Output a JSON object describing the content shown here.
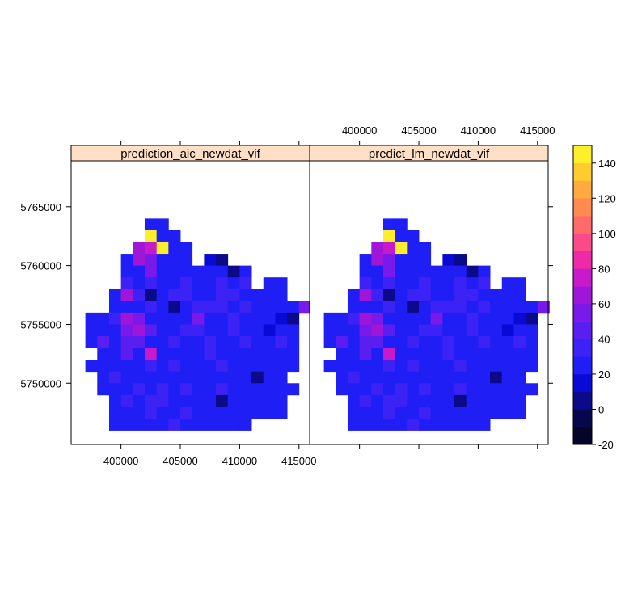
{
  "chart_data": {
    "type": "heatmap",
    "panels": [
      {
        "strip_label": "prediction_aic_newdat_vif"
      },
      {
        "strip_label": "predict_lm_newdat_vif"
      }
    ],
    "xlim": [
      395800,
      415900
    ],
    "ylim": [
      5744800,
      5768900
    ],
    "x_ticks": [
      400000,
      405000,
      410000,
      415000
    ],
    "x_tick_labels": [
      "400000",
      "405000",
      "410000",
      "415000"
    ],
    "y_ticks": [
      5750000,
      5755000,
      5760000,
      5765000
    ],
    "y_tick_labels": [
      "5750000",
      "5755000",
      "5760000",
      "5765000"
    ],
    "colorkey": {
      "range": [
        -20,
        150
      ],
      "breaks": [
        -20,
        -10,
        0,
        10,
        20,
        30,
        40,
        50,
        60,
        70,
        80,
        90,
        100,
        110,
        120,
        130,
        140,
        150
      ],
      "colors": [
        "#050529",
        "#07074d",
        "#0b0b8a",
        "#0a0ad6",
        "#1f1ff5",
        "#3d22f5",
        "#5a1ff0",
        "#7a1aea",
        "#a016d8",
        "#c81ac8",
        "#ee2aa8",
        "#fa4a8a",
        "#ff6a6a",
        "#ff8a52",
        "#ffaa40",
        "#ffcc30",
        "#ffee2a"
      ],
      "ticks": [
        -20,
        0,
        20,
        40,
        60,
        80,
        100,
        120,
        140
      ],
      "tick_labels": [
        "-20",
        "0",
        "20",
        "40",
        "60",
        "80",
        "100",
        "120",
        "140"
      ]
    },
    "grid": {
      "x0": 396000,
      "y0": 5745000,
      "cell": 1000,
      "comment_free_rows_note": "",
      "rows": [
        [
          "",
          "",
          "",
          "",
          "",
          "",
          "",
          "",
          "",
          "",
          "",
          "",
          "",
          "",
          "",
          "",
          "",
          "",
          "",
          ""
        ],
        [
          "",
          "",
          "",
          "",
          "",
          "",
          "c",
          "A",
          "",
          "",
          "",
          "",
          "",
          "",
          "",
          "",
          "",
          "",
          "",
          ""
        ],
        [
          "",
          "",
          "",
          "",
          "",
          "",
          "B",
          "A",
          "c",
          "",
          "",
          "",
          "",
          "",
          "",
          "",
          "",
          "",
          "",
          ""
        ],
        [
          "",
          "",
          "",
          "",
          "",
          "g",
          "H",
          "B",
          "c",
          "c",
          "",
          "",
          "",
          "",
          "",
          "",
          "",
          "",
          "",
          ""
        ],
        [
          "",
          "",
          "",
          "",
          "c",
          "g",
          "F",
          "c",
          "c",
          "c",
          "",
          "b",
          "a",
          "",
          "",
          "",
          "",
          "",
          "",
          ""
        ],
        [
          "",
          "",
          "",
          "",
          "c",
          "c",
          "f",
          "c",
          "c",
          "c",
          "c",
          "c",
          "c",
          "a",
          "c",
          "",
          "",
          "",
          "",
          ""
        ],
        [
          "",
          "",
          "",
          "",
          "d",
          "c",
          "d",
          "c",
          "c",
          "d",
          "c",
          "c",
          "d",
          "c",
          "d",
          "",
          "c",
          "c",
          "",
          ""
        ],
        [
          "",
          "",
          "",
          "c",
          "g",
          "d",
          "a",
          "c",
          "d",
          "d",
          "c",
          "c",
          "d",
          "d",
          "c",
          "c",
          "c",
          "c",
          "",
          ""
        ],
        [
          "",
          "",
          "",
          "c",
          "c",
          "c",
          "d",
          "c",
          "a",
          "c",
          "d",
          "d",
          "d",
          "c",
          "d",
          "c",
          "c",
          "c",
          "c",
          "f"
        ],
        [
          "",
          "c",
          "c",
          "d",
          "g",
          "f",
          "c",
          "c",
          "c",
          "c",
          "f",
          "c",
          "c",
          "d",
          "c",
          "c",
          "c",
          "b",
          "a",
          ""
        ],
        [
          "",
          "c",
          "c",
          "c",
          "f",
          "g",
          "e",
          "c",
          "c",
          "d",
          "d",
          "c",
          "c",
          "d",
          "c",
          "c",
          "b",
          "c",
          "c",
          ""
        ],
        [
          "",
          "c",
          "e",
          "c",
          "e",
          "e",
          "c",
          "c",
          "d",
          "c",
          "c",
          "d",
          "c",
          "c",
          "d",
          "c",
          "c",
          "d",
          "c",
          ""
        ],
        [
          "",
          "",
          "c",
          "c",
          "e",
          "c",
          "H",
          "c",
          "c",
          "c",
          "c",
          "d",
          "c",
          "c",
          "c",
          "c",
          "c",
          "c",
          "c",
          ""
        ],
        [
          "",
          "c",
          "c",
          "c",
          "c",
          "c",
          "d",
          "c",
          "d",
          "c",
          "c",
          "c",
          "d",
          "c",
          "c",
          "c",
          "c",
          "c",
          "c",
          ""
        ],
        [
          "",
          "",
          "c",
          "d",
          "c",
          "c",
          "c",
          "c",
          "c",
          "c",
          "c",
          "c",
          "c",
          "c",
          "c",
          "a",
          "c",
          "c",
          "",
          ""
        ],
        [
          "",
          "",
          "c",
          "c",
          "c",
          "d",
          "c",
          "d",
          "c",
          "d",
          "c",
          "c",
          "d",
          "c",
          "c",
          "c",
          "c",
          "c",
          "c",
          ""
        ],
        [
          "",
          "",
          "",
          "c",
          "d",
          "c",
          "d",
          "d",
          "c",
          "c",
          "c",
          "c",
          "a",
          "c",
          "c",
          "c",
          "c",
          "c",
          "",
          ""
        ],
        [
          "",
          "",
          "",
          "c",
          "c",
          "c",
          "d",
          "c",
          "c",
          "d",
          "c",
          "c",
          "c",
          "c",
          "c",
          "c",
          "c",
          "c",
          "",
          ""
        ],
        [
          "",
          "",
          "",
          "c",
          "c",
          "c",
          "c",
          "c",
          "d",
          "c",
          "c",
          "c",
          "c",
          "c",
          "c",
          "",
          "",
          "",
          "",
          ""
        ],
        [
          "",
          "",
          "",
          "",
          "",
          "",
          "",
          "",
          "",
          "",
          "",
          "",
          "",
          "",
          "",
          "",
          "",
          "",
          "",
          ""
        ]
      ]
    }
  }
}
